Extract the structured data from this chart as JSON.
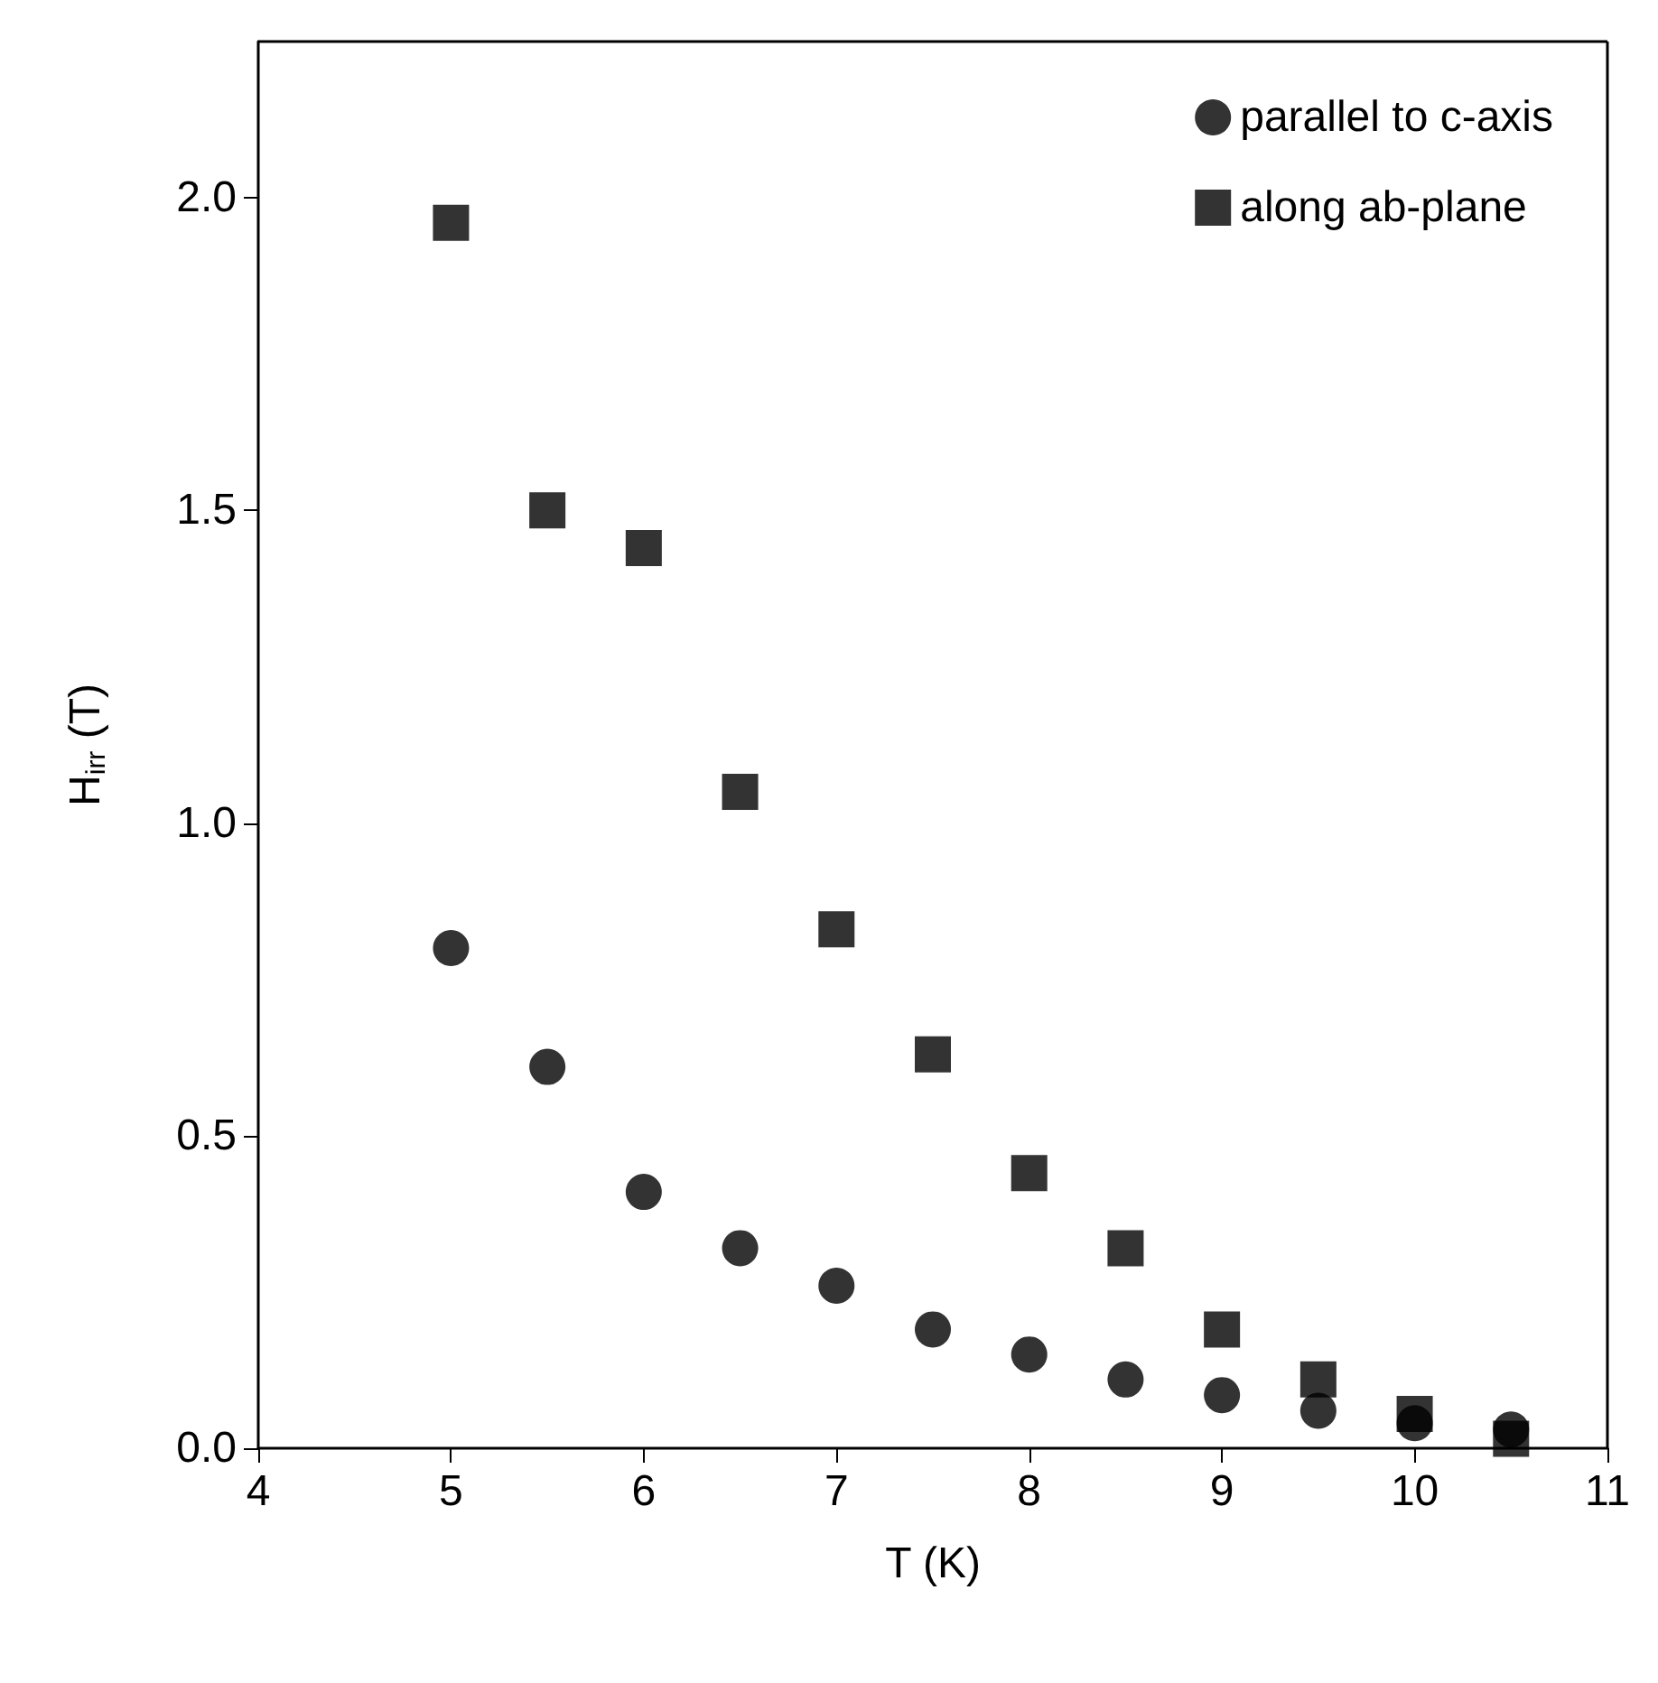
{
  "chart_data": {
    "type": "scatter",
    "xlabel": "T (K)",
    "ylabel": "H$_{irr}$ (T)",
    "xlim": [
      4,
      11
    ],
    "xticks": [
      4,
      5,
      6,
      7,
      8,
      9,
      10,
      11
    ],
    "ylim": [
      0,
      2.25
    ],
    "yticks": [
      {
        "value": 0,
        "label": "0.0"
      },
      {
        "value": 0.5,
        "label": "0.5"
      },
      {
        "value": 1,
        "label": "1.0"
      },
      {
        "value": 1.5,
        "label": "1.5"
      },
      {
        "value": 2,
        "label": "2.0"
      }
    ],
    "grid": false,
    "legend": "top right",
    "x": [
      5,
      5.5,
      6,
      6.5,
      7,
      7.5,
      8,
      8.5,
      9,
      9.5,
      10,
      10.5
    ],
    "series": [
      {
        "name": "parallel to c-axis",
        "color": "#000000",
        "marker": "circle",
        "values": [
          0.8,
          0.61,
          0.41,
          0.32,
          0.26,
          0.19,
          0.15,
          0.11,
          0.085,
          0.06,
          0.04,
          0.03
        ]
      },
      {
        "name": "along ab-plane",
        "color": "#000000",
        "marker": "square",
        "values": [
          1.96,
          1.5,
          1.44,
          1.05,
          0.83,
          0.63,
          0.44,
          0.32,
          0.19,
          0.11,
          0.055,
          0.015
        ]
      }
    ]
  }
}
